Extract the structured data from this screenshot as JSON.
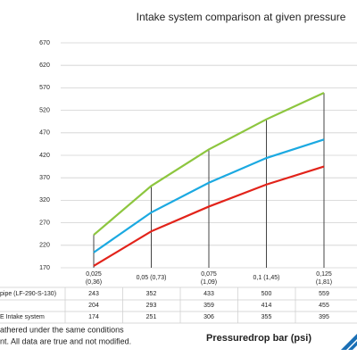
{
  "chart_data": {
    "type": "line",
    "title": "Intake system comparison at given pressure",
    "x_label": "Pressuredrop bar (psi)",
    "categories": [
      [
        "0,025",
        "(0,36)"
      ],
      [
        "0,05 (0,73)"
      ],
      [
        "0,075",
        "(1,09)"
      ],
      [
        "0,1 (1,45)"
      ],
      [
        "0,125",
        "(1,81)"
      ]
    ],
    "series": [
      {
        "name": "pipe (LF-290-S-130)",
        "color": "#8dc63f",
        "values": [
          243,
          352,
          433,
          500,
          559
        ]
      },
      {
        "name": null,
        "color": "#1ba9e1",
        "values": [
          204,
          293,
          359,
          414,
          455
        ]
      },
      {
        "name": "E Intake system",
        "color": "#e2231a",
        "values": [
          174,
          251,
          306,
          355,
          395
        ]
      }
    ],
    "ylim": [
      170,
      670
    ],
    "yticks": [
      170,
      220,
      270,
      320,
      370,
      420,
      470,
      520,
      570,
      620,
      670
    ],
    "grid": true,
    "notes": [
      "athered under the same conditions",
      "nt. All data are true and not modified."
    ]
  }
}
